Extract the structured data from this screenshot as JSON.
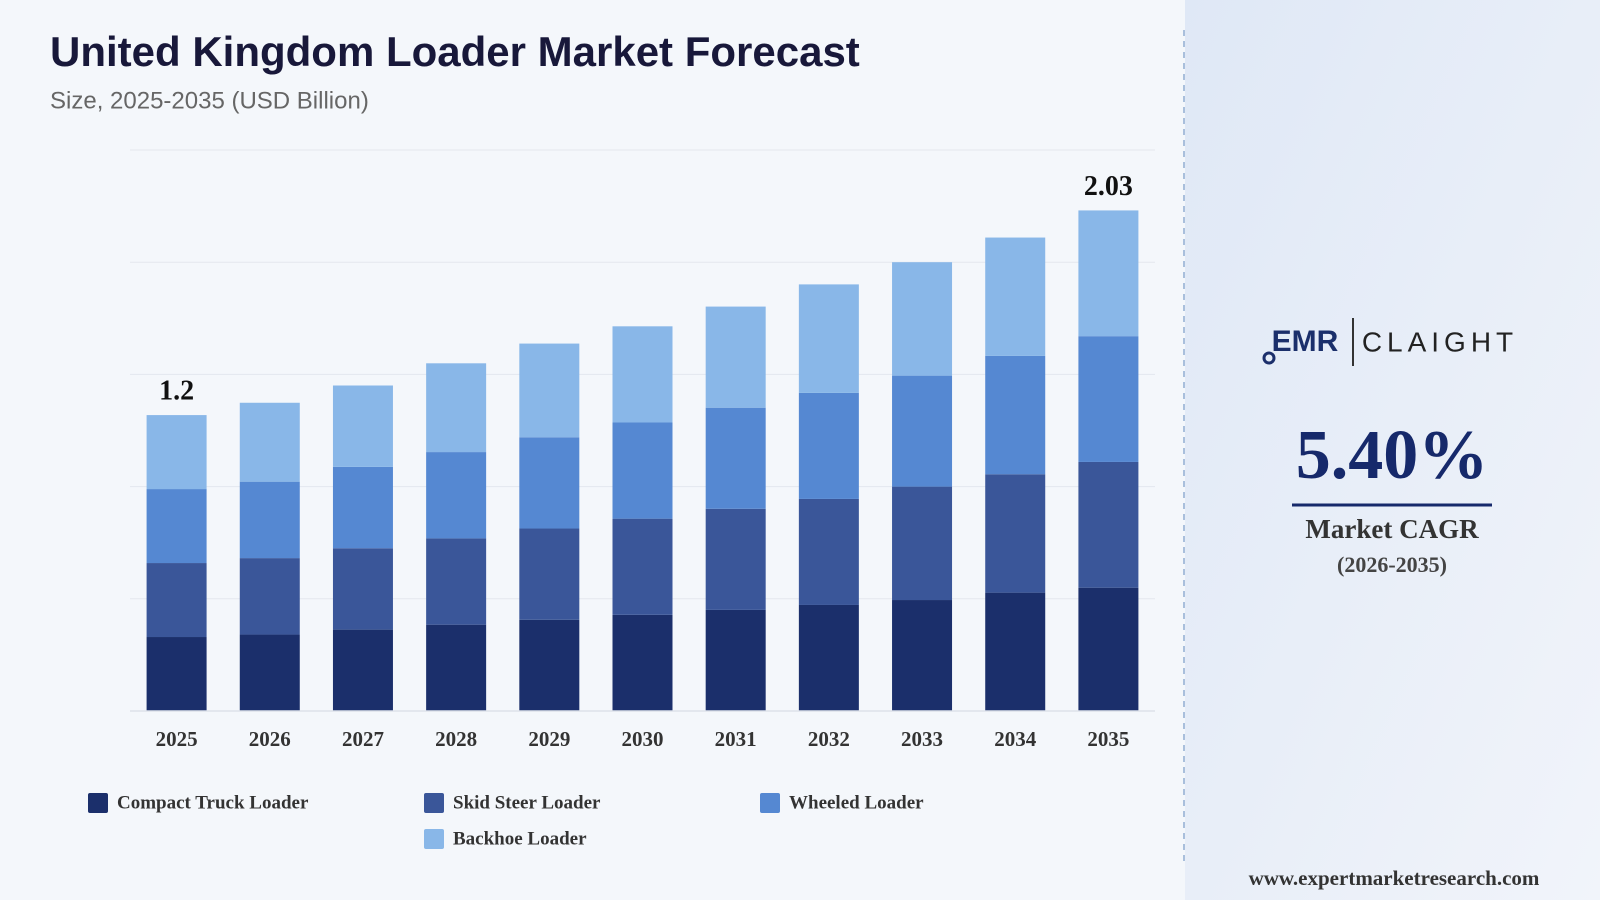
{
  "chart_data": {
    "type": "stacked-bar",
    "title": "United Kingdom Loader Market Forecast",
    "subtitle": "Size, 2025-2035 (USD Billion)",
    "categories": [
      "2025",
      "2026",
      "2027",
      "2028",
      "2029",
      "2030",
      "2031",
      "2032",
      "2033",
      "2034",
      "2035"
    ],
    "series": [
      {
        "name": "Compact Truck Loader",
        "color": "#1b2f6b",
        "values": [
          0.3,
          0.31,
          0.33,
          0.35,
          0.37,
          0.39,
          0.41,
          0.43,
          0.45,
          0.48,
          0.5
        ]
      },
      {
        "name": "Skid Steer Loader",
        "color": "#3a5699",
        "values": [
          0.3,
          0.31,
          0.33,
          0.35,
          0.37,
          0.39,
          0.41,
          0.43,
          0.46,
          0.48,
          0.51
        ]
      },
      {
        "name": "Wheeled Loader",
        "color": "#5588d2",
        "values": [
          0.3,
          0.31,
          0.33,
          0.35,
          0.37,
          0.39,
          0.41,
          0.43,
          0.45,
          0.48,
          0.51
        ]
      },
      {
        "name": "Backhoe Loader",
        "color": "#89b7e8",
        "values": [
          0.3,
          0.32,
          0.33,
          0.36,
          0.38,
          0.39,
          0.41,
          0.44,
          0.46,
          0.48,
          0.51
        ]
      }
    ],
    "totals": [
      1.2,
      null,
      null,
      null,
      null,
      null,
      null,
      null,
      null,
      null,
      2.03
    ],
    "ylim": [
      0,
      2.275
    ],
    "yticks": [
      0,
      0.455,
      0.91,
      1.365,
      1.82,
      2.275
    ],
    "grid": true
  },
  "side": {
    "logo_left": "EMR",
    "logo_right": "CLAIGHT",
    "cagr": "5.40%",
    "cagr_label": "Market CAGR",
    "cagr_period": "(2026-2035)",
    "website": "www.expertmarketresearch.com"
  }
}
